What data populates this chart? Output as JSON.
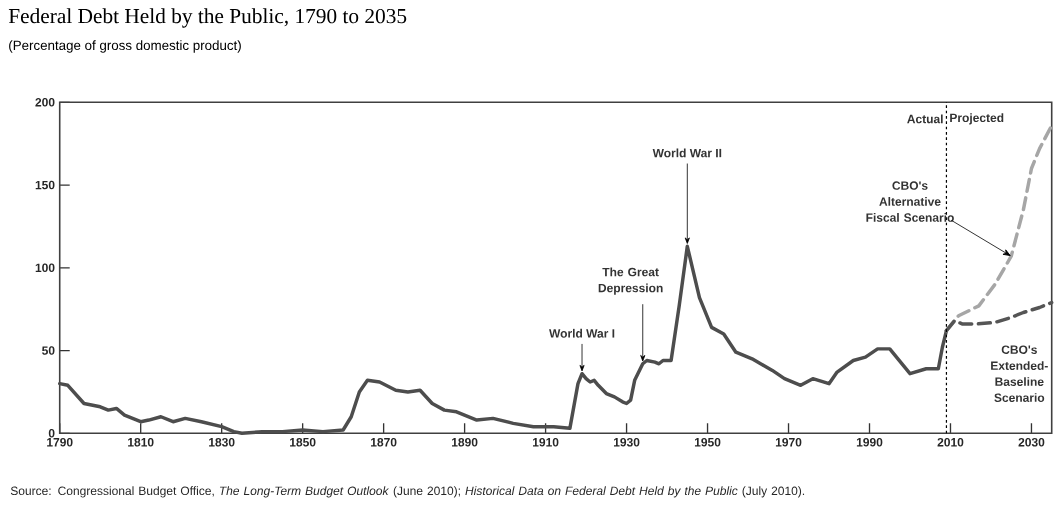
{
  "chart_data": {
    "type": "line",
    "title": "Federal Debt Held by the Public, 1790 to 2035",
    "subtitle": "(Percentage of gross domestic product)",
    "xlim": [
      1790,
      2035
    ],
    "ylim": [
      0,
      200
    ],
    "xticks": [
      1790,
      1810,
      1830,
      1850,
      1870,
      1890,
      1910,
      1930,
      1950,
      1970,
      1990,
      2010,
      2030
    ],
    "yticks": [
      0,
      50,
      100,
      150,
      200
    ],
    "marker": "none",
    "series": [
      {
        "color": "#4d4d4d",
        "line_style": "solid",
        "x": [
          1790,
          1792,
          1796,
          1800,
          1802,
          1804,
          1806,
          1810,
          1812,
          1815,
          1818,
          1821,
          1825,
          1830,
          1833,
          1835,
          1840,
          1845,
          1850,
          1855,
          1860,
          1862,
          1864,
          1866,
          1869,
          1873,
          1876,
          1879,
          1882,
          1885,
          1888,
          1893,
          1897,
          1902,
          1907,
          1912,
          1916,
          1918,
          1919,
          1920,
          1921,
          1922,
          1923,
          1925,
          1927,
          1929,
          1930,
          1931,
          1932,
          1934,
          1935,
          1937,
          1938,
          1939,
          1941,
          1943,
          1945,
          1948,
          1951,
          1954,
          1957,
          1961,
          1966,
          1969,
          1973,
          1976,
          1980,
          1982,
          1986,
          1989,
          1992,
          1995,
          2000,
          2004,
          2007,
          2008,
          2009
        ],
        "values": [
          30,
          29,
          18,
          16,
          14,
          15,
          11,
          7,
          8,
          10,
          7,
          9,
          7,
          4,
          1,
          0,
          1,
          1,
          2,
          1,
          2,
          10,
          25,
          32,
          31,
          26,
          25,
          26,
          18,
          14,
          13,
          8,
          9,
          6,
          4,
          4,
          3,
          30,
          36,
          33,
          31,
          32,
          29,
          24,
          22,
          19,
          18,
          20,
          32,
          42,
          44,
          43,
          42,
          44,
          44,
          77,
          113,
          82,
          64,
          60,
          49,
          45,
          38,
          33,
          29,
          33,
          30,
          37,
          44,
          46,
          51,
          51,
          36,
          39,
          39,
          52,
          62
        ]
      },
      {
        "color": "#a6a6a6",
        "line_style": "dashed",
        "x": [
          2009,
          2012,
          2017,
          2021,
          2025,
          2028,
          2030,
          2032,
          2035
        ],
        "values": [
          62,
          71,
          77,
          90,
          107,
          135,
          160,
          172,
          186
        ]
      },
      {
        "name": "CBO's Extended-Baseline Scenario",
        "color": "#555555",
        "line_style": "dashed",
        "x": [
          2009,
          2011,
          2013,
          2016,
          2021,
          2025,
          2028,
          2032,
          2035
        ],
        "values": [
          62,
          68,
          66,
          66,
          67,
          70,
          73,
          76,
          79
        ]
      }
    ],
    "ref_lines": [
      {
        "axis": "x",
        "value": 2009,
        "line_style": "dotted",
        "color": "#000000"
      }
    ],
    "annotations": [
      {
        "text": "Actual",
        "x": 2009,
        "y": 190
      },
      {
        "text": "Projected",
        "x": 2009,
        "y": 190
      },
      {
        "text": "World War I",
        "x": 1919,
        "y": 36
      },
      {
        "text": "The Great Depression",
        "x": 1934,
        "y": 42
      },
      {
        "text": "World War II",
        "x": 1945,
        "y": 113
      },
      {
        "text": "CBO's Alternative Fiscal Scenario",
        "x": 2025,
        "y": 107
      },
      "Source: Congressional Budget Office, *The Long-Term Budget Outlook* (June 2010); *Historical Data on Federal Debt Held by the Public* (July 2010)."
    ]
  }
}
